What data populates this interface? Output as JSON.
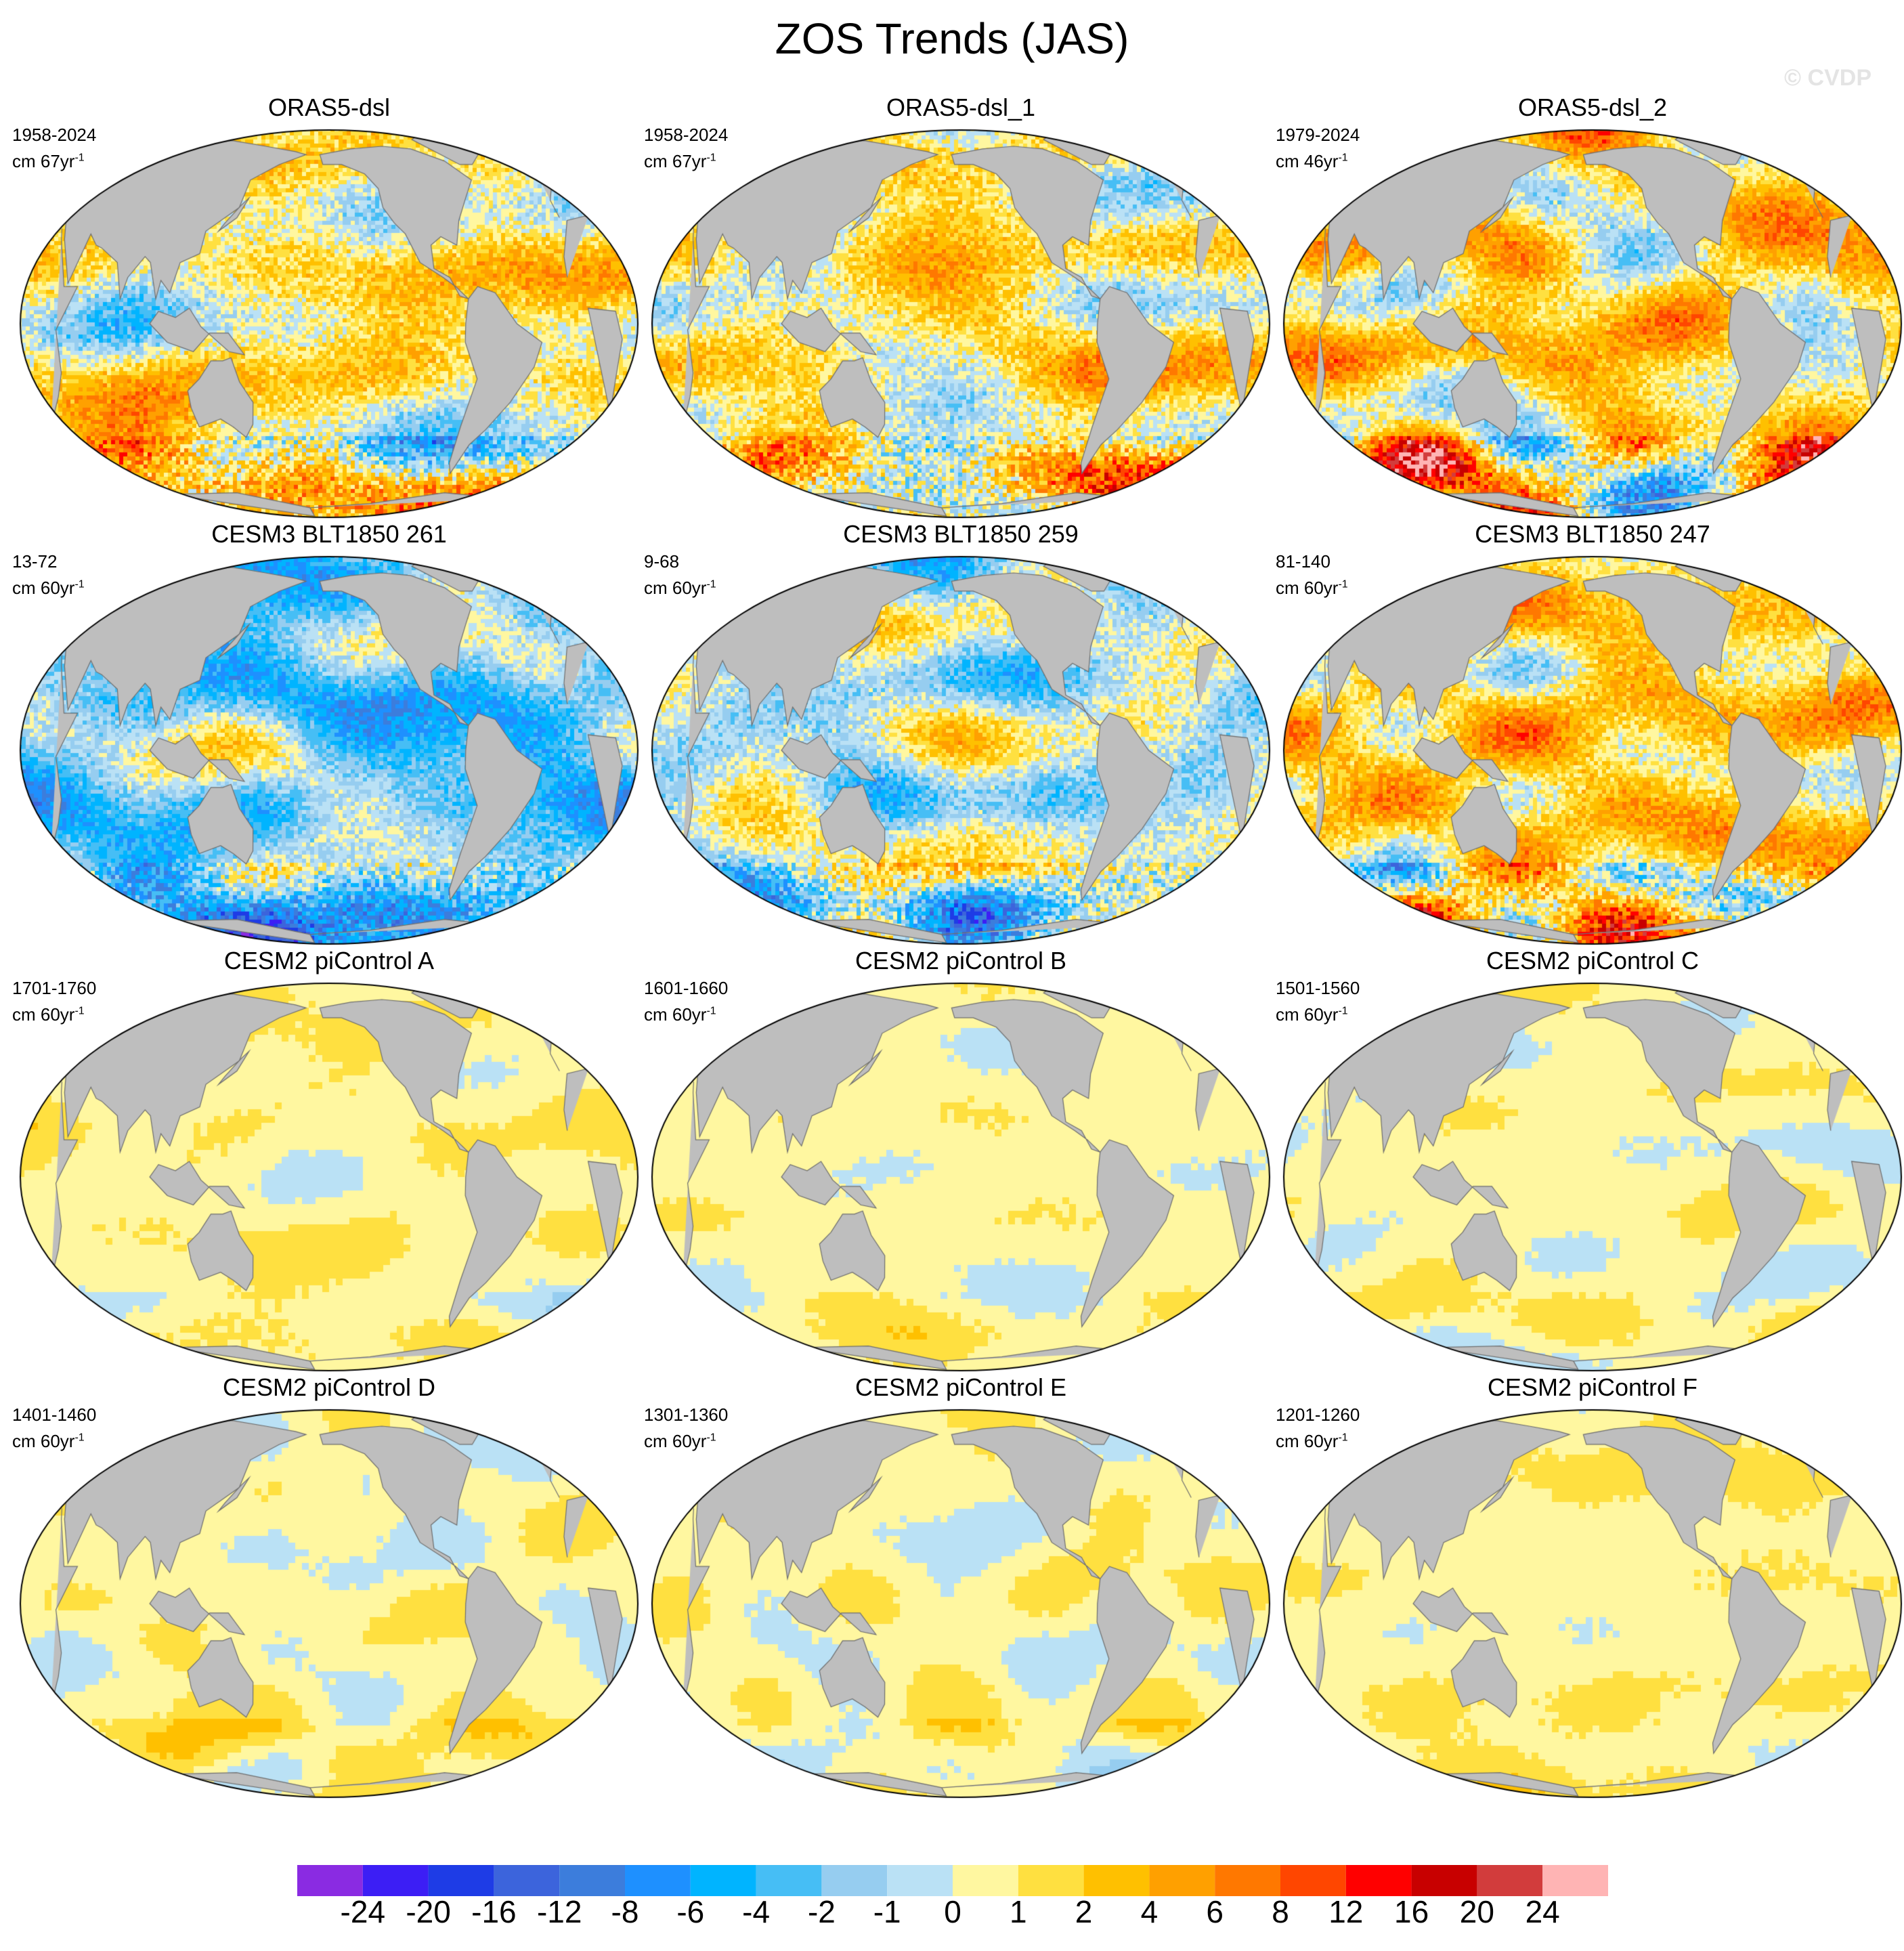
{
  "title": "ZOS Trends (JAS)",
  "watermark": "© CVDP",
  "panels": [
    {
      "title": "ORAS5-dsl",
      "period": "1958-2024",
      "units": "cm 67yr",
      "exp": "-1",
      "tone": "strong_obs_a"
    },
    {
      "title": "ORAS5-dsl_1",
      "period": "1958-2024",
      "units": "cm 67yr",
      "exp": "-1",
      "tone": "strong_obs_a"
    },
    {
      "title": "ORAS5-dsl_2",
      "period": "1979-2024",
      "units": "cm 46yr",
      "exp": "-1",
      "tone": "strong_obs_b"
    },
    {
      "title": "CESM3 BLT1850 261",
      "period": "13-72",
      "units": "cm 60yr",
      "exp": "-1",
      "tone": "cesm3_negative"
    },
    {
      "title": "CESM3 BLT1850 259",
      "period": "9-68",
      "units": "cm 60yr",
      "exp": "-1",
      "tone": "cesm3_mixed"
    },
    {
      "title": "CESM3 BLT1850 247",
      "period": "81-140",
      "units": "cm 60yr",
      "exp": "-1",
      "tone": "cesm3_positive"
    },
    {
      "title": "CESM2 piControl A",
      "period": "1701-1760",
      "units": "cm 60yr",
      "exp": "-1",
      "tone": "weak_positive"
    },
    {
      "title": "CESM2 piControl B",
      "period": "1601-1660",
      "units": "cm 60yr",
      "exp": "-1",
      "tone": "weak_mixed"
    },
    {
      "title": "CESM2 piControl C",
      "period": "1501-1560",
      "units": "cm 60yr",
      "exp": "-1",
      "tone": "weak_mixed"
    },
    {
      "title": "CESM2 piControl D",
      "period": "1401-1460",
      "units": "cm 60yr",
      "exp": "-1",
      "tone": "weak_mixed"
    },
    {
      "title": "CESM2 piControl E",
      "period": "1301-1360",
      "units": "cm 60yr",
      "exp": "-1",
      "tone": "weak_mixed"
    },
    {
      "title": "CESM2 piControl F",
      "period": "1201-1260",
      "units": "cm 60yr",
      "exp": "-1",
      "tone": "weak_positive"
    }
  ],
  "colorbar": {
    "colors": [
      "#8a2be2",
      "#3c1ef5",
      "#1e3ce6",
      "#3c64dc",
      "#3c7ddc",
      "#1e90ff",
      "#00b4ff",
      "#46bef5",
      "#96cdf0",
      "#bae1f5",
      "#fff7a0",
      "#ffe040",
      "#ffc000",
      "#ffa000",
      "#ff7800",
      "#ff4600",
      "#ff0000",
      "#c80000",
      "#d23c3c",
      "#ffb4b4"
    ],
    "labels": [
      "-24",
      "-20",
      "-16",
      "-12",
      "-8",
      "-6",
      "-4",
      "-2",
      "-1",
      "0",
      "1",
      "2",
      "4",
      "6",
      "8",
      "12",
      "16",
      "20",
      "24"
    ]
  },
  "land_color": "#bebebe"
}
